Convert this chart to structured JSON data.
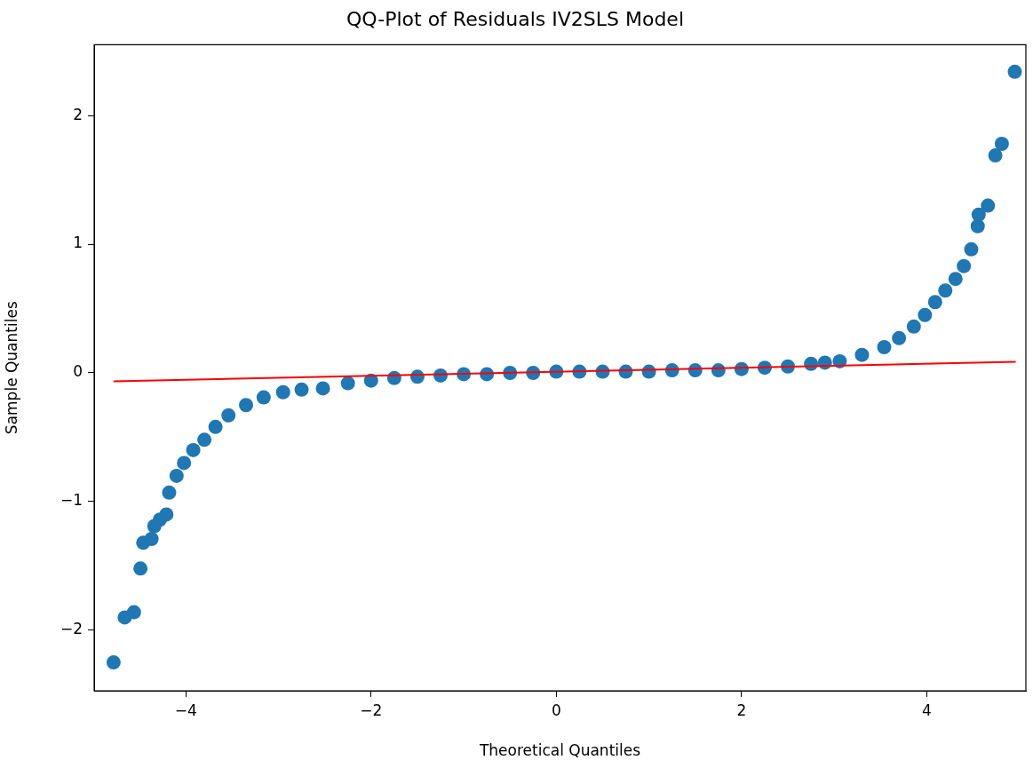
{
  "chart_data": {
    "type": "scatter",
    "title": "QQ-Plot of Residuals IV2SLS Model",
    "xlabel": "Theoretical Quantiles",
    "ylabel": "Sample Quantiles",
    "xlim": [
      -4.99,
      5.07
    ],
    "ylim": [
      -2.47,
      2.55
    ],
    "xticks": [
      {
        "value": -4,
        "label": "−4"
      },
      {
        "value": -2,
        "label": "−2"
      },
      0,
      2,
      4
    ],
    "yticks": [
      {
        "value": -2,
        "label": "−2"
      },
      {
        "value": -1,
        "label": "−1"
      },
      0,
      1,
      2
    ],
    "grid": false,
    "marker": "circle",
    "series": [
      {
        "color": "#1f77b4",
        "x": [
          -4.78,
          -4.66,
          -4.56,
          -4.49,
          -4.46,
          -4.37,
          -4.34,
          -4.28,
          -4.21,
          -4.18,
          -4.1,
          -4.02,
          -3.92,
          -3.8,
          -3.68,
          -3.54,
          -3.35,
          -3.16,
          -2.95,
          -2.75,
          -2.52,
          -2.25,
          -2.0,
          -1.75,
          -1.5,
          -1.25,
          -1.0,
          -0.75,
          -0.5,
          -0.25,
          0,
          0.25,
          0.5,
          0.75,
          1.0,
          1.25,
          1.5,
          1.75,
          2.0,
          2.25,
          2.5,
          2.75,
          2.9,
          3.06,
          3.3,
          3.54,
          3.7,
          3.86,
          3.98,
          4.09,
          4.2,
          4.31,
          4.4,
          4.48,
          4.55,
          4.56,
          4.66,
          4.74,
          4.81,
          4.95
        ],
        "values": [
          -2.25,
          -1.9,
          -1.86,
          -1.52,
          -1.32,
          -1.29,
          -1.19,
          -1.14,
          -1.1,
          -0.93,
          -0.8,
          -0.7,
          -0.6,
          -0.52,
          -0.42,
          -0.33,
          -0.25,
          -0.19,
          -0.15,
          -0.13,
          -0.12,
          -0.08,
          -0.06,
          -0.04,
          -0.03,
          -0.02,
          -0.01,
          -0.01,
          0,
          0,
          0.01,
          0.01,
          0.01,
          0.01,
          0.01,
          0.02,
          0.02,
          0.02,
          0.03,
          0.04,
          0.05,
          0.07,
          0.08,
          0.09,
          0.14,
          0.2,
          0.27,
          0.36,
          0.45,
          0.55,
          0.64,
          0.73,
          0.83,
          0.96,
          1.14,
          1.23,
          1.3,
          1.69,
          1.78,
          2.34
        ]
      },
      {
        "type": "line",
        "color": "#ff0000",
        "marker": "none",
        "x": [
          -4.78,
          4.96
        ],
        "values": [
          -0.065,
          0.086
        ]
      }
    ]
  }
}
